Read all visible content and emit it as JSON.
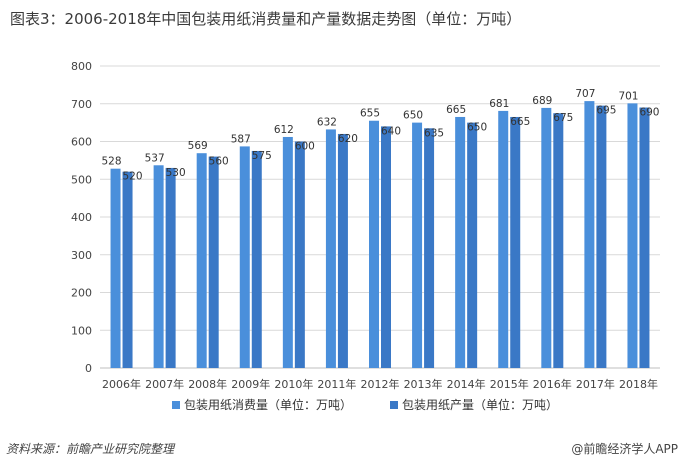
{
  "title": "图表3：2006-2018年中国包装用纸消费量和产量数据走势图（单位：万吨）",
  "source": "资料来源：前瞻产业研究院整理",
  "brand": "@前瞻经济学人APP",
  "colors": {
    "consumption": "#4a8fdb",
    "production": "#3a78c6",
    "grid": "#d9d9d9",
    "axis": "#bfbfbf"
  },
  "chart_data": {
    "type": "bar",
    "categories": [
      "2006年",
      "2007年",
      "2008年",
      "2009年",
      "2010年",
      "2011年",
      "2012年",
      "2013年",
      "2014年",
      "2015年",
      "2016年",
      "2017年",
      "2018年"
    ],
    "series": [
      {
        "name": "包装用纸消费量（单位：万吨）",
        "values": [
          528,
          537,
          569,
          587,
          612,
          632,
          655,
          650,
          665,
          681,
          689,
          707,
          701
        ]
      },
      {
        "name": "包装用纸产量（单位：万吨）",
        "values": [
          520,
          530,
          560,
          575,
          600,
          620,
          640,
          635,
          650,
          665,
          675,
          695,
          690
        ]
      }
    ],
    "yticks": [
      0,
      100,
      200,
      300,
      400,
      500,
      600,
      700,
      800
    ],
    "ylim": [
      0,
      800
    ],
    "grid": true,
    "legend_position": "bottom"
  }
}
